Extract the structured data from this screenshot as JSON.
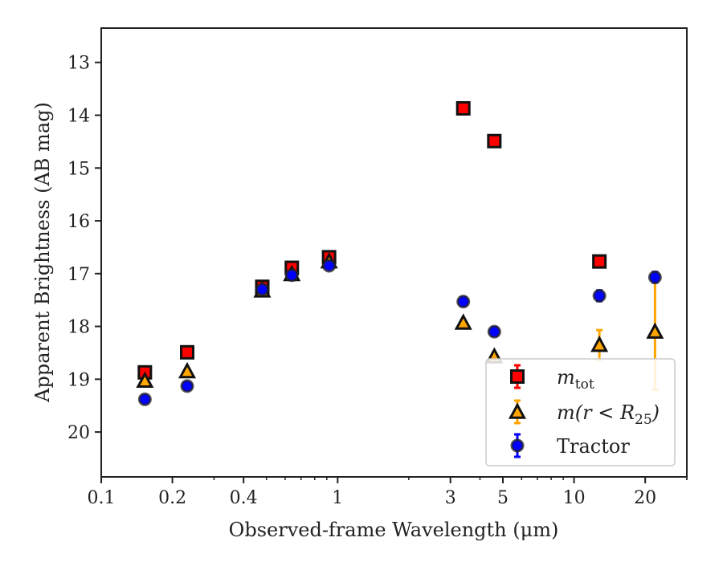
{
  "chart_data": {
    "type": "scatter",
    "xlabel": "Observed-frame Wavelength (μm)",
    "ylabel": "Apparent Brightness (AB mag)",
    "x_scale": "log",
    "xlim": [
      0.1,
      30
    ],
    "ylim": [
      20.85,
      12.35
    ],
    "y_inverted": true,
    "x_ticks": [
      {
        "value": 0.1,
        "label": "0.1"
      },
      {
        "value": 0.2,
        "label": "0.2"
      },
      {
        "value": 0.4,
        "label": "0.4"
      },
      {
        "value": 1,
        "label": "1"
      },
      {
        "value": 3,
        "label": "3"
      },
      {
        "value": 5,
        "label": "5"
      },
      {
        "value": 10,
        "label": "10"
      },
      {
        "value": 20,
        "label": "20"
      }
    ],
    "y_ticks": [
      {
        "value": 13,
        "label": "13"
      },
      {
        "value": 14,
        "label": "14"
      },
      {
        "value": 15,
        "label": "15"
      },
      {
        "value": 16,
        "label": "16"
      },
      {
        "value": 17,
        "label": "17"
      },
      {
        "value": 18,
        "label": "18"
      },
      {
        "value": 19,
        "label": "19"
      },
      {
        "value": 20,
        "label": "20"
      }
    ],
    "grid": false,
    "legend_position": "lower-right",
    "series": [
      {
        "key": "mtot",
        "marker": "square",
        "face_color": "#ff0000",
        "error_color": "#ff0000",
        "points": [
          {
            "x": 0.153,
            "y": 18.87,
            "err": 0.05
          },
          {
            "x": 0.231,
            "y": 18.49,
            "err": 0.05
          },
          {
            "x": 0.48,
            "y": 17.25,
            "err": 0.05
          },
          {
            "x": 0.64,
            "y": 16.89,
            "err": 0.05
          },
          {
            "x": 0.92,
            "y": 16.69,
            "err": 0.05
          },
          {
            "x": 3.4,
            "y": 13.87,
            "err": 0.05
          },
          {
            "x": 4.6,
            "y": 14.49,
            "err": 0.05
          },
          {
            "x": 12.8,
            "y": 16.77,
            "err": 0.05
          }
        ]
      },
      {
        "key": "m_r25",
        "marker": "triangle",
        "face_color": "#ffa500",
        "error_color": "#ffa500",
        "points": [
          {
            "x": 0.153,
            "y": 19.03,
            "err": 0.05
          },
          {
            "x": 0.231,
            "y": 18.85,
            "err": 0.05
          },
          {
            "x": 0.48,
            "y": 17.32,
            "err": 0.05
          },
          {
            "x": 0.64,
            "y": 17.01,
            "err": 0.05
          },
          {
            "x": 0.92,
            "y": 16.77,
            "err": 0.05
          },
          {
            "x": 3.4,
            "y": 17.93,
            "err": 0.05
          },
          {
            "x": 4.6,
            "y": 18.57,
            "err": 0.05
          },
          {
            "x": 12.8,
            "y": 18.35,
            "err": 0.28
          },
          {
            "x": 22.0,
            "y": 18.1,
            "err": 1.1
          }
        ]
      },
      {
        "key": "tractor",
        "marker": "circle",
        "face_color": "#0000ff",
        "error_color": "#0000ff",
        "points": [
          {
            "x": 0.153,
            "y": 19.38,
            "err": 0.05
          },
          {
            "x": 0.231,
            "y": 19.13,
            "err": 0.05
          },
          {
            "x": 0.48,
            "y": 17.3,
            "err": 0.05
          },
          {
            "x": 0.64,
            "y": 17.03,
            "err": 0.05
          },
          {
            "x": 0.92,
            "y": 16.85,
            "err": 0.05
          },
          {
            "x": 3.4,
            "y": 17.53,
            "err": 0.08
          },
          {
            "x": 4.6,
            "y": 18.1,
            "err": 0.08
          },
          {
            "x": 12.8,
            "y": 17.42,
            "err": 0.1
          },
          {
            "x": 22.0,
            "y": 17.07,
            "err": 0.1
          }
        ]
      }
    ],
    "legend": [
      {
        "series": "mtot",
        "label_main": "m",
        "label_sub": "tot",
        "label_rest": ""
      },
      {
        "series": "m_r25",
        "label_main": "m(r < R",
        "label_sub": "25",
        "label_rest": ")"
      },
      {
        "series": "tractor",
        "label_main": "Tractor",
        "label_sub": "",
        "label_rest": ""
      }
    ]
  }
}
